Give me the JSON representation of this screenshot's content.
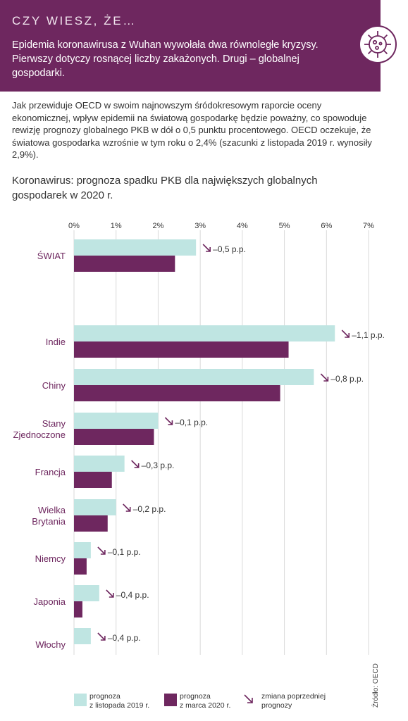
{
  "header": {
    "kicker": "CZY WIESZ, ŻE…",
    "lead": "Epidemia koronawirusa z Wuhan wywołała dwa równoległe kryzysy. Pierwszy dotyczy rosnącej liczby zakażonych. Drugi – globalnej gospodarki."
  },
  "body_text": "Jak przewiduje OECD w swoim najnowszym śródokresowym raporcie oceny ekonomicznej, wpływ epidemii na światową gospodarkę będzie poważny, co spowoduje rewizję prognozy globalnego PKB w dół o 0,5 punktu procentowego. OECD oczekuje, że światowa gospodarka wzrośnie w tym roku o 2,4% (szacunki z listopada 2019 r. wynosiły 2,9%).",
  "source": "Źródło: OECD",
  "legend": {
    "nov": {
      "line1": "prognoza",
      "line2": "z listopada 2019 r."
    },
    "mar": {
      "line1": "prognoza",
      "line2": "z marca 2020 r."
    },
    "change": {
      "line1": "zmiana poprzedniej",
      "line2": "prognozy"
    }
  },
  "colors": {
    "header_bg": "#6e275f",
    "nov_bar": "#bfe5e2",
    "mar_bar": "#6e275f",
    "label_text": "#6e275f",
    "grid": "#d9d9d9"
  },
  "icons": [
    "coronavirus-gear-icon",
    "arrow-down-right-icon"
  ],
  "chart_data": {
    "type": "bar",
    "orientation": "horizontal",
    "title": "Koronawirus: prognoza spadku PKB dla największych globalnych gospodarek w 2020 r.",
    "xlim": [
      0,
      7
    ],
    "x_ticks": [
      "0%",
      "1%",
      "2%",
      "3%",
      "4%",
      "5%",
      "6%",
      "7%"
    ],
    "grid": true,
    "legend_position": "bottom",
    "categories": [
      "ŚWIAT",
      "Indie",
      "Chiny",
      "Stany Zjednoczone",
      "Francja",
      "Wielka Brytania",
      "Niemcy",
      "Japonia",
      "Włochy"
    ],
    "category_lines": [
      [
        "ŚWIAT"
      ],
      [
        "Indie"
      ],
      [
        "Chiny"
      ],
      [
        "Stany",
        "Zjednoczone"
      ],
      [
        "Francja"
      ],
      [
        "Wielka",
        "Brytania"
      ],
      [
        "Niemcy"
      ],
      [
        "Japonia"
      ],
      [
        "Włochy"
      ]
    ],
    "series": [
      {
        "name": "prognoza z listopada 2019 r.",
        "values": [
          2.9,
          6.2,
          5.7,
          2.0,
          1.2,
          1.0,
          0.4,
          0.6,
          0.4
        ]
      },
      {
        "name": "prognoza z marca 2020 r.",
        "values": [
          2.4,
          5.1,
          4.9,
          1.9,
          0.9,
          0.8,
          0.3,
          0.2,
          0.0
        ]
      }
    ],
    "change_labels": [
      "–0,5 p.p.",
      "–1,1 p.p.",
      "–0,8 p.p.",
      "–0,1 p.p.",
      "–0,3 p.p.",
      "–0,2 p.p.",
      "–0,1 p.p.",
      "–0,4 p.p.",
      "–0,4 p.p."
    ]
  }
}
